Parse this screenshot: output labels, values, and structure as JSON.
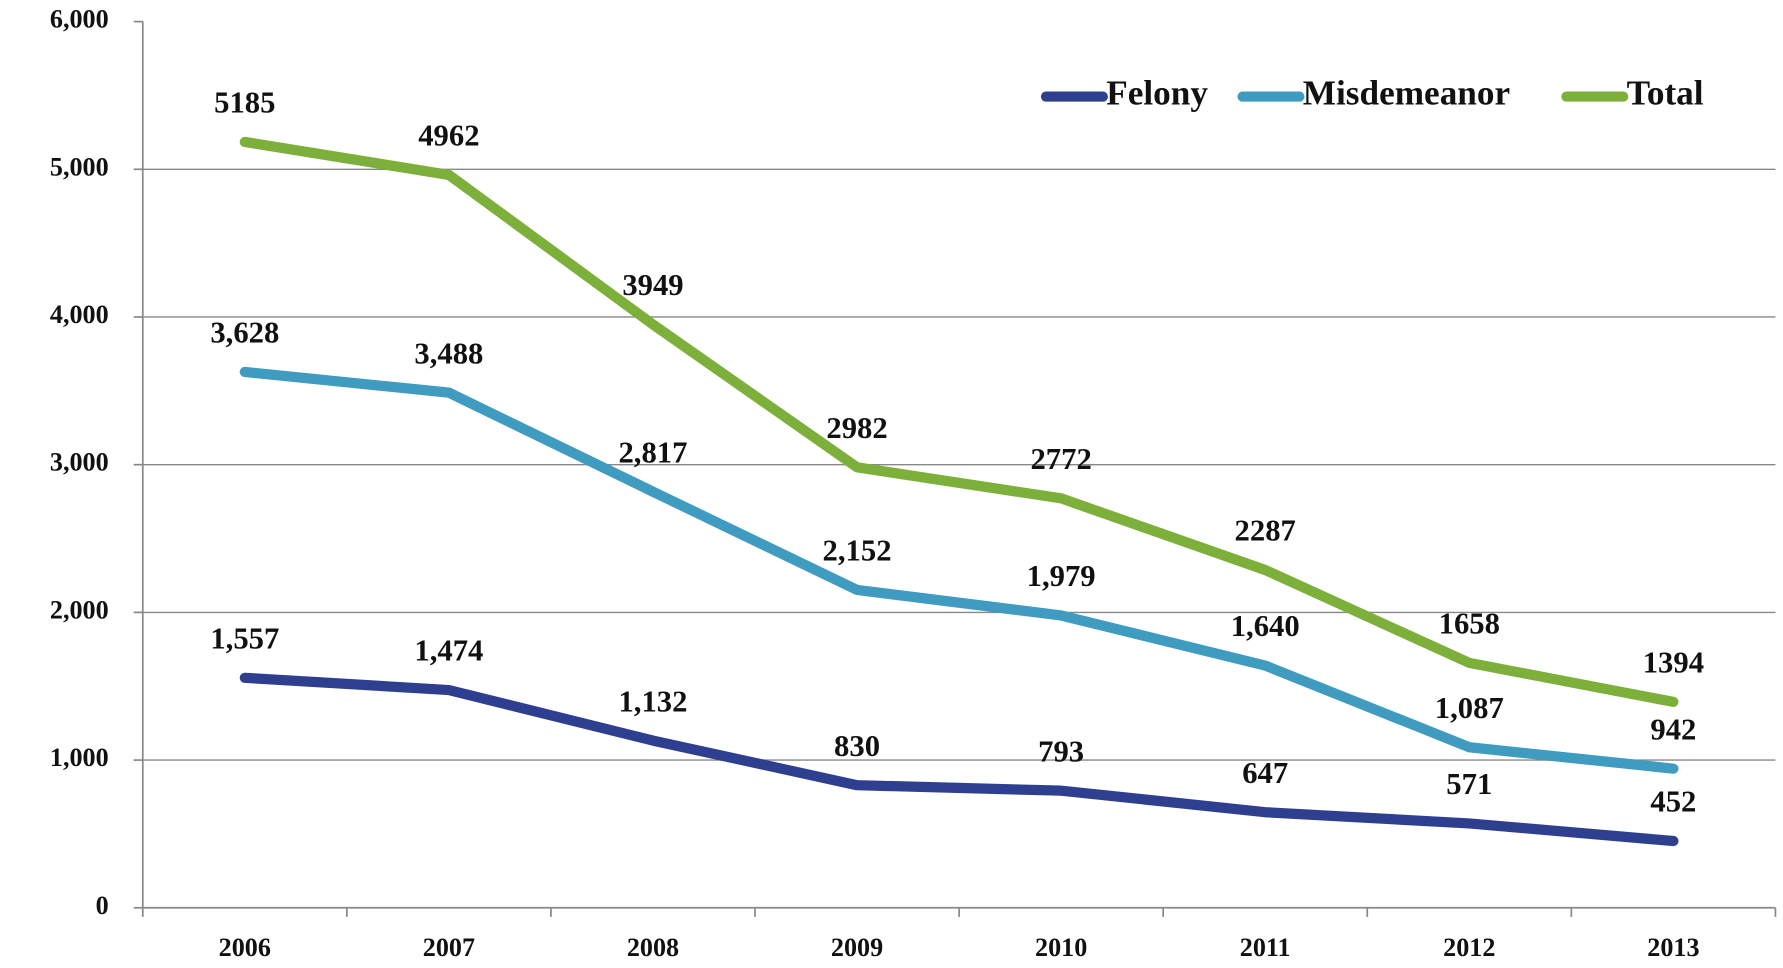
{
  "chart_data": {
    "type": "line",
    "categories": [
      "2006",
      "2007",
      "2008",
      "2009",
      "2010",
      "2011",
      "2012",
      "2013"
    ],
    "series": [
      {
        "name": "Felony",
        "color": "#2e3f8f",
        "values": [
          1557,
          1474,
          1132,
          830,
          793,
          647,
          571,
          452
        ],
        "value_labels": [
          "1,557",
          "1,474",
          "1,132",
          "830",
          "793",
          "647",
          "571",
          "452"
        ]
      },
      {
        "name": "Misdemeanor",
        "color": "#3f9bbf",
        "values": [
          3628,
          3488,
          2817,
          2152,
          1979,
          1640,
          1087,
          942
        ],
        "value_labels": [
          "3,628",
          "3,488",
          "2,817",
          "2,152",
          "1,979",
          "1,640",
          "1,087",
          "942"
        ]
      },
      {
        "name": "Total",
        "color": "#7db03a",
        "values": [
          5185,
          4962,
          3949,
          2982,
          2772,
          2287,
          1658,
          1394
        ]
      }
    ],
    "ylim": [
      0,
      6000
    ],
    "yticks": [
      0,
      {
        "value": 1000,
        "label": "1,000"
      },
      {
        "value": 2000,
        "label": "2,000"
      },
      {
        "value": 3000,
        "label": "3,000"
      },
      {
        "value": 4000,
        "label": "4,000"
      },
      {
        "value": 5000,
        "label": "5,000"
      },
      {
        "value": 6000,
        "label": "6,000"
      }
    ],
    "grid": true,
    "legend": "top-right"
  }
}
